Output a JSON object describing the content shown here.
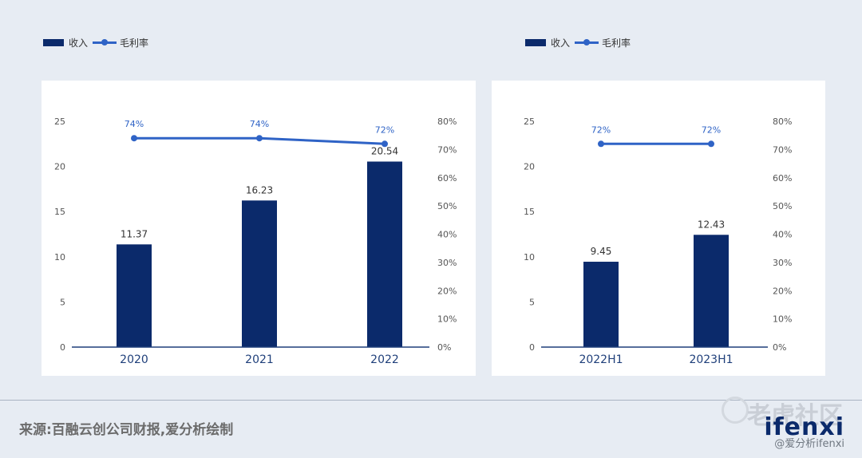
{
  "legend_left": {
    "bar": "收入",
    "line": "毛利率"
  },
  "legend_right": {
    "bar": "收入",
    "line": "毛利率"
  },
  "chart_data": [
    {
      "type": "bar",
      "categories": [
        "2020",
        "2021",
        "2022"
      ],
      "series": [
        {
          "name": "收入",
          "type": "bar",
          "values": [
            11.37,
            16.23,
            20.54
          ],
          "labels": [
            "11.37",
            "16.23",
            "20.54"
          ]
        },
        {
          "name": "毛利率",
          "type": "line",
          "axis": "right",
          "values": [
            74,
            74,
            72
          ],
          "labels": [
            "74%",
            "74%",
            "72%"
          ]
        }
      ],
      "y_left_ticks": [
        "0",
        "5",
        "10",
        "15",
        "20",
        "25"
      ],
      "y_left_range": [
        0,
        25
      ],
      "y_right_ticks": [
        "0%",
        "10%",
        "20%",
        "30%",
        "40%",
        "50%",
        "60%",
        "70%",
        "80%"
      ],
      "y_right_range": [
        0,
        80
      ],
      "legend_position": "top-left",
      "grid": false
    },
    {
      "type": "bar",
      "categories": [
        "2022H1",
        "2023H1"
      ],
      "series": [
        {
          "name": "收入",
          "type": "bar",
          "values": [
            9.45,
            12.43
          ],
          "labels": [
            "9.45",
            "12.43"
          ]
        },
        {
          "name": "毛利率",
          "type": "line",
          "axis": "right",
          "values": [
            72,
            72
          ],
          "labels": [
            "72%",
            "72%"
          ]
        }
      ],
      "y_left_ticks": [
        "0",
        "5",
        "10",
        "15",
        "20",
        "25"
      ],
      "y_left_range": [
        0,
        25
      ],
      "y_right_ticks": [
        "0%",
        "10%",
        "20%",
        "30%",
        "40%",
        "50%",
        "60%",
        "70%",
        "80%"
      ],
      "y_right_range": [
        0,
        80
      ],
      "legend_position": "top-left",
      "grid": false
    }
  ],
  "colors": {
    "bar": "#0b2a6b",
    "line": "#2f63c6",
    "axis": "#1f3f7a",
    "tick": "#555555",
    "label": "#333333"
  },
  "source_text": "来源:百融云创公司财报,爱分析绘制",
  "watermark": {
    "community": "老虎社区",
    "brand": "ifenxi",
    "credit": "@爱分析ifenxi"
  }
}
